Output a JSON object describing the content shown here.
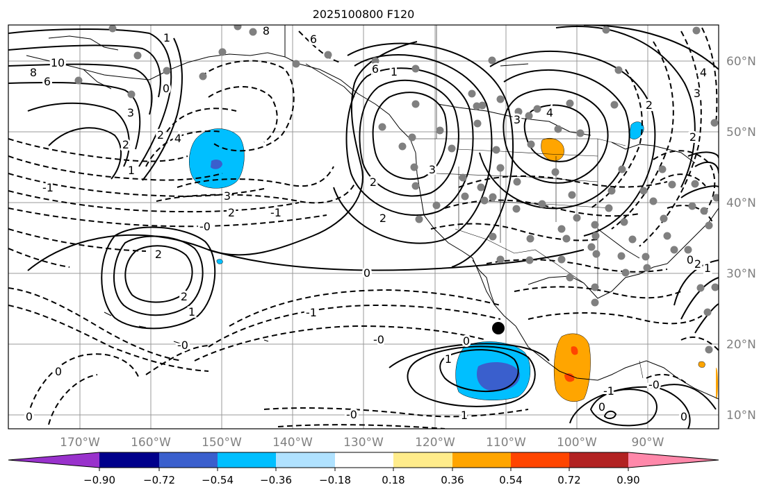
{
  "title": "2025100800 F120",
  "lon_labels": [
    "170°W",
    "160°W",
    "150°W",
    "140°W",
    "130°W",
    "120°W",
    "110°W",
    "100°W",
    "90°W"
  ],
  "lat_labels": [
    "60°N",
    "50°N",
    "40°N",
    "30°N",
    "20°N",
    "10°N"
  ],
  "colorbar": {
    "ticks": [
      "−0.90",
      "−0.72",
      "−0.54",
      "−0.36",
      "−0.18",
      "0.18",
      "0.36",
      "0.54",
      "0.72",
      "0.90"
    ],
    "colors": [
      "#9932cc",
      "#00008b",
      "#3a5fcd",
      "#00bfff",
      "#b0e2ff",
      "#ffffff",
      "#ffec8b",
      "#ffa500",
      "#ff4500",
      "#b22222",
      "#ff88aa"
    ]
  },
  "contour_labels": [
    "10",
    "8",
    "6",
    "8",
    "6",
    "3",
    "2",
    "1",
    "0",
    "4",
    "2",
    "1",
    "-1",
    "3",
    "2",
    "-1",
    "-0",
    "2",
    "2",
    "1",
    "-0",
    "6",
    "1",
    "2",
    "2",
    "3",
    "3",
    "4",
    "3",
    "2",
    "4",
    "2",
    "0",
    "-1",
    "-0",
    "0",
    "1",
    "0",
    "1",
    "-0",
    "0",
    "-1",
    "0",
    "0",
    "-0",
    "1",
    "2",
    "0"
  ],
  "colors": {
    "contour": "#000000",
    "grid": "#999999",
    "coast": "#000000",
    "station": "#808080",
    "axis_label": "#808080"
  }
}
